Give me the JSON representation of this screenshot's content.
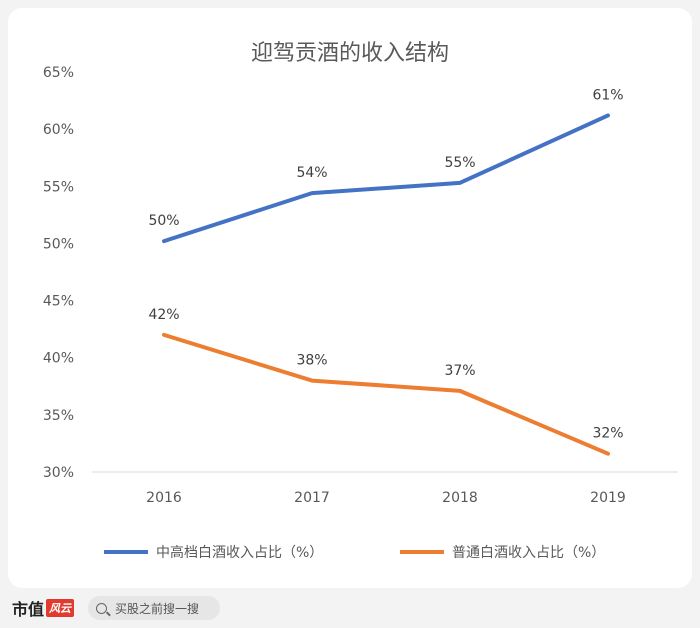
{
  "chart_data": {
    "type": "line",
    "title": "迎驾贡酒的收入结构",
    "x": [
      "2016",
      "2017",
      "2018",
      "2019"
    ],
    "ylim": [
      30,
      65
    ],
    "yticks": [
      30,
      35,
      40,
      45,
      50,
      55,
      60,
      65
    ],
    "ytick_suffix": "%",
    "grid": false,
    "legend_position": "bottom",
    "series": [
      {
        "name": "中高档白酒收入占比（%）",
        "color": "#4472c4",
        "values": [
          50.2,
          54.4,
          55.3,
          61.2
        ],
        "labels": [
          "50%",
          "54%",
          "55%",
          "61%"
        ]
      },
      {
        "name": "普通白酒收入占比（%）",
        "color": "#ed7d31",
        "values": [
          42.0,
          38.0,
          37.1,
          31.6
        ],
        "labels": [
          "42%",
          "38%",
          "37%",
          "32%"
        ]
      }
    ]
  },
  "footer": {
    "brand": "市值",
    "brand_seal": "风云",
    "search_placeholder": "买股之前搜一搜"
  }
}
